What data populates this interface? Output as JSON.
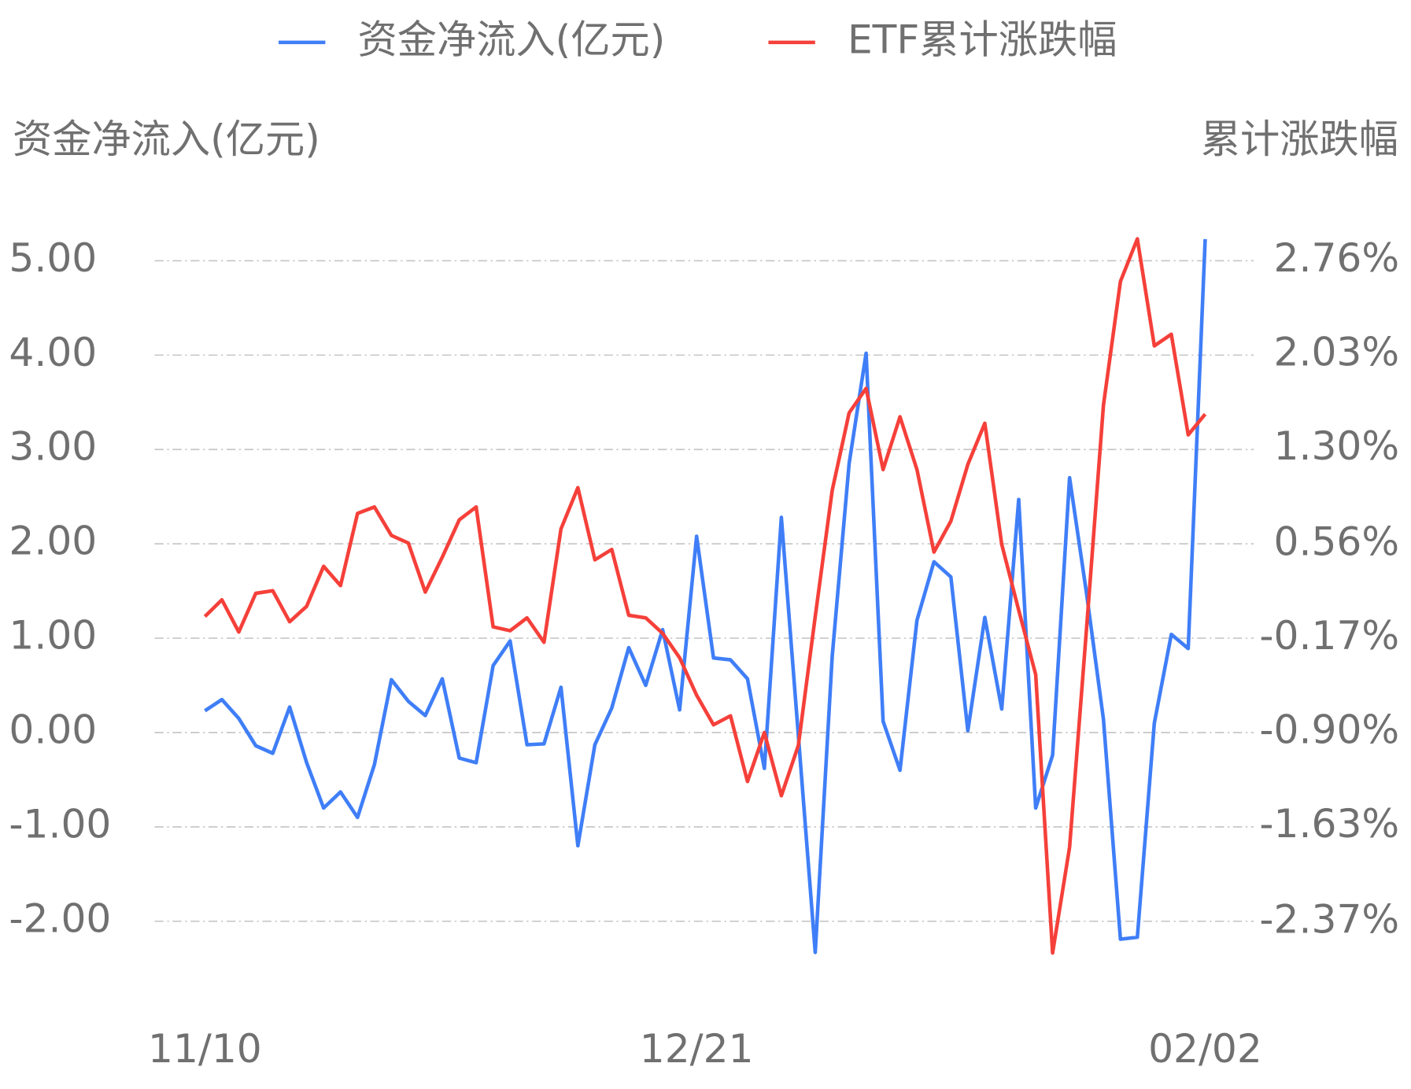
{
  "chart_data": {
    "type": "line",
    "y_label": "资金净流入(亿元)",
    "y2_label": "累计涨跌幅",
    "categories": [
      "11/10",
      null,
      null,
      null,
      null,
      null,
      null,
      null,
      null,
      null,
      null,
      null,
      null,
      null,
      null,
      null,
      null,
      null,
      null,
      null,
      null,
      null,
      null,
      null,
      null,
      null,
      null,
      null,
      null,
      "12/21",
      null,
      null,
      null,
      null,
      null,
      null,
      null,
      null,
      null,
      null,
      null,
      null,
      null,
      null,
      null,
      null,
      null,
      null,
      null,
      null,
      null,
      null,
      null,
      null,
      null,
      null,
      null,
      null,
      null,
      "02/02"
    ],
    "series": [
      {
        "name": "资金净流入(亿元)",
        "color": "#3f7ef7",
        "axis": "y",
        "values": [
          0.23,
          0.35,
          0.15,
          -0.14,
          -0.22,
          0.27,
          -0.32,
          -0.8,
          -0.63,
          -0.9,
          -0.34,
          0.56,
          0.33,
          0.18,
          0.57,
          -0.27,
          -0.32,
          0.71,
          0.97,
          -0.13,
          -0.12,
          0.48,
          -1.2,
          -0.13,
          0.26,
          0.9,
          0.5,
          1.09,
          0.24,
          2.08,
          0.79,
          0.77,
          0.57,
          -0.38,
          2.28,
          -0.03,
          -2.33,
          0.81,
          2.85,
          4.02,
          0.12,
          -0.4,
          1.19,
          1.81,
          1.65,
          0.02,
          1.22,
          0.25,
          2.47,
          -0.8,
          -0.24,
          2.7,
          1.48,
          0.14,
          -2.19,
          -2.17,
          0.1,
          1.04,
          0.89,
          5.23
        ]
      },
      {
        "name": "ETF累计涨跌幅",
        "color": "#f5403a",
        "axis": "y2",
        "values": [
          0.0,
          0.13,
          -0.12,
          0.18,
          0.2,
          -0.04,
          0.08,
          0.39,
          0.24,
          0.8,
          0.85,
          0.63,
          0.57,
          0.19,
          0.46,
          0.75,
          0.85,
          -0.08,
          -0.11,
          -0.01,
          -0.2,
          0.68,
          1.0,
          0.44,
          0.52,
          0.01,
          -0.01,
          -0.13,
          -0.32,
          -0.61,
          -0.84,
          -0.77,
          -1.28,
          -0.9,
          -1.39,
          -1.0,
          0.0,
          0.98,
          1.58,
          1.77,
          1.14,
          1.55,
          1.14,
          0.5,
          0.74,
          1.18,
          1.5,
          0.56,
          0.05,
          -0.45,
          -2.61,
          -1.79,
          -0.1,
          1.64,
          2.6,
          2.93,
          2.1,
          2.19,
          1.41,
          1.57
        ]
      }
    ],
    "ylim": [
      -2.6,
      5.4
    ],
    "yticks": [
      {
        "value": 5,
        "label": "5.00"
      },
      {
        "value": 4,
        "label": "4.00"
      },
      {
        "value": 3,
        "label": "3.00"
      },
      {
        "value": 2,
        "label": "2.00"
      },
      {
        "value": 1,
        "label": "1.00"
      },
      {
        "value": 0,
        "label": "0.00"
      },
      {
        "value": -1,
        "label": "-1.00"
      },
      {
        "value": -2,
        "label": "-2.00"
      }
    ],
    "y2lim": [
      -2.803,
      3.053
    ],
    "y2ticks": [
      {
        "value": 2.76,
        "label": "2.76%"
      },
      {
        "value": 2.03,
        "label": "2.03%"
      },
      {
        "value": 1.3,
        "label": "1.30%"
      },
      {
        "value": 0.56,
        "label": "0.56%"
      },
      {
        "value": -0.17,
        "label": "-0.17%"
      },
      {
        "value": -0.9,
        "label": "-0.90%"
      },
      {
        "value": -1.63,
        "label": "-1.63%"
      },
      {
        "value": -2.37,
        "label": "-2.37%"
      }
    ],
    "grid": true
  }
}
